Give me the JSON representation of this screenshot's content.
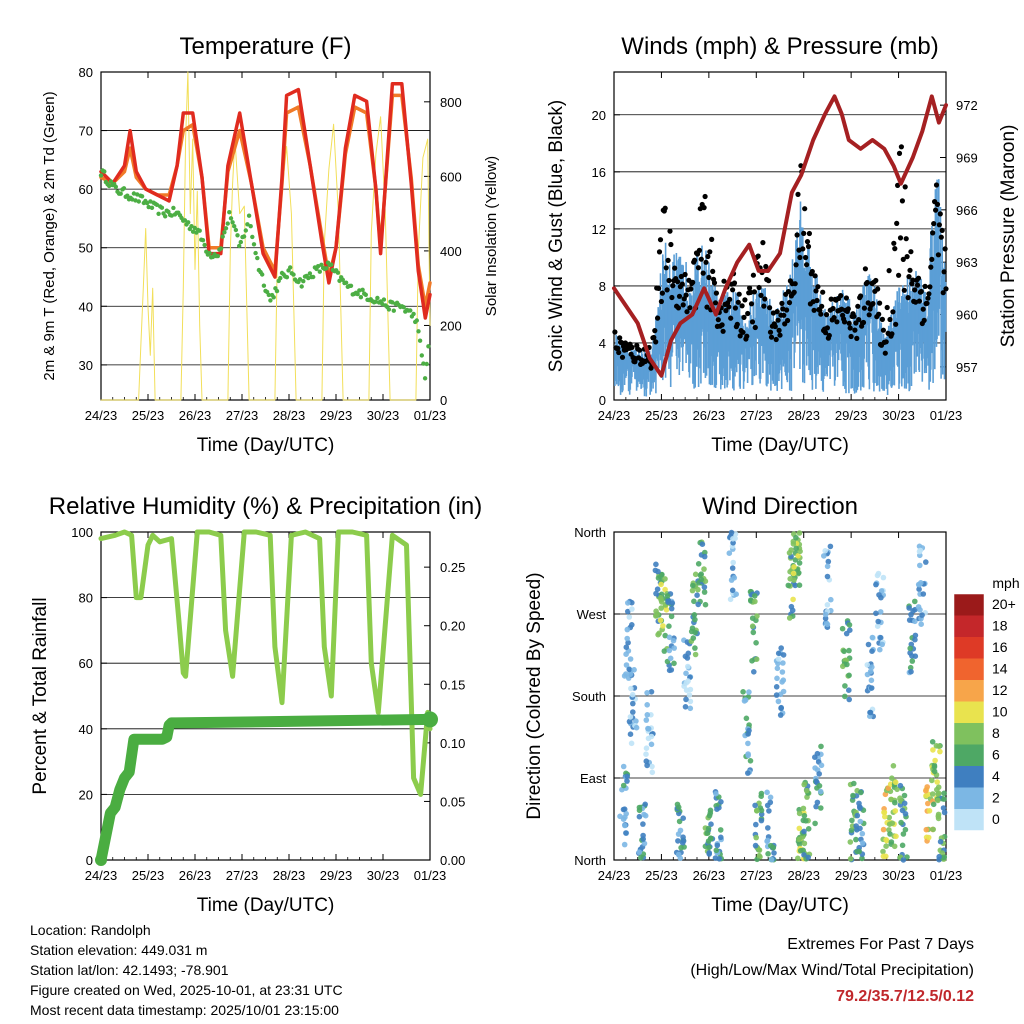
{
  "colors": {
    "temp_2m": "#e02b1f",
    "temp_9m": "#f07a28",
    "dewpoint": "#4cae44",
    "solar": "#f2df5a",
    "wind": "#5b9ed6",
    "gust": "#000000",
    "pressure": "#a52022",
    "humidity": "#8ccc4c",
    "rain": "#4aad41",
    "accent_red": "#c0282c"
  },
  "time_ticks": [
    "24/23",
    "25/23",
    "26/23",
    "27/23",
    "28/23",
    "29/23",
    "30/23",
    "01/23"
  ],
  "chart_data": [
    {
      "id": "temperature",
      "type": "line",
      "title": "Temperature (F)",
      "xlabel": "Time (Day/UTC)",
      "ylabel": "2m & 9m T (Red, Orange) & 2m Td (Green)",
      "y2label": "Solar Insolation (Yellow)",
      "xlim": [
        0,
        7
      ],
      "ylim": [
        24,
        80
      ],
      "yticks": [
        30,
        40,
        50,
        60,
        70,
        80
      ],
      "y2lim": [
        0,
        880
      ],
      "y2ticks": [
        0,
        200,
        400,
        600,
        800
      ],
      "series": [
        {
          "name": "2m Temperature",
          "color": "#e02b1f",
          "x": [
            0,
            0.25,
            0.5,
            0.62,
            0.75,
            0.95,
            1.2,
            1.45,
            1.62,
            1.75,
            1.95,
            2.15,
            2.3,
            2.55,
            2.7,
            2.95,
            3.2,
            3.45,
            3.7,
            3.85,
            3.95,
            4.2,
            4.45,
            4.7,
            4.85,
            5.0,
            5.2,
            5.4,
            5.65,
            5.85,
            5.95,
            6.2,
            6.4,
            6.6,
            6.75,
            6.9,
            7.0
          ],
          "y": [
            63,
            61,
            64,
            70,
            63,
            60,
            59,
            58,
            64,
            73,
            73,
            62,
            49,
            49,
            64,
            73,
            61,
            49,
            45,
            62,
            76,
            77,
            64,
            51,
            44,
            50,
            67,
            76,
            75,
            60,
            49,
            78,
            78,
            61,
            46,
            38,
            42
          ]
        },
        {
          "name": "9m Temperature",
          "color": "#f07a28",
          "x": [
            0,
            0.25,
            0.5,
            0.62,
            0.75,
            0.95,
            1.2,
            1.45,
            1.62,
            1.75,
            1.95,
            2.15,
            2.3,
            2.55,
            2.7,
            2.95,
            3.2,
            3.45,
            3.7,
            3.85,
            3.95,
            4.2,
            4.45,
            4.7,
            4.85,
            5.0,
            5.2,
            5.4,
            5.65,
            5.85,
            5.95,
            6.2,
            6.4,
            6.6,
            6.75,
            6.9,
            7.0
          ],
          "y": [
            62,
            61,
            63,
            67,
            62,
            60,
            59,
            59,
            64,
            70,
            71,
            62,
            50,
            50,
            63,
            70,
            61,
            50,
            46,
            61,
            73,
            74,
            64,
            52,
            45,
            50,
            66,
            74,
            73,
            60,
            50,
            76,
            76,
            62,
            47,
            40,
            44
          ]
        },
        {
          "name": "2m Dewpoint",
          "color": "#4cae44",
          "x": [
            0,
            0.3,
            0.6,
            0.9,
            1.1,
            1.35,
            1.6,
            1.85,
            2.05,
            2.3,
            2.5,
            2.75,
            2.95,
            3.15,
            3.35,
            3.6,
            3.85,
            4.05,
            4.25,
            4.55,
            4.85,
            5.05,
            5.3,
            5.6,
            5.9,
            6.15,
            6.4,
            6.7,
            6.9,
            7.0
          ],
          "y": [
            63,
            60,
            59,
            58,
            57,
            56,
            56,
            54,
            53,
            49,
            49,
            56,
            50,
            55,
            47,
            41,
            45,
            46,
            44,
            46,
            47,
            45,
            43,
            42,
            41,
            40,
            40,
            38,
            28,
            35
          ]
        },
        {
          "name": "Solar Insolation",
          "color": "#f2df5a",
          "axis": "y2",
          "x": [
            0,
            0.8,
            0.85,
            0.9,
            0.95,
            1.0,
            1.05,
            1.1,
            1.15,
            1.7,
            1.75,
            1.8,
            1.85,
            1.9,
            1.95,
            2.0,
            2.05,
            2.1,
            2.15,
            2.7,
            2.75,
            2.8,
            2.85,
            2.95,
            3.05,
            3.15,
            3.7,
            3.75,
            3.85,
            3.95,
            4.05,
            4.15,
            4.7,
            4.75,
            4.85,
            4.95,
            5.05,
            5.15,
            5.7,
            5.75,
            5.85,
            5.95,
            6.05,
            6.15,
            6.7,
            6.75,
            6.85,
            6.95,
            7.0
          ],
          "y": [
            0,
            0,
            150,
            300,
            460,
            250,
            120,
            300,
            0,
            0,
            300,
            700,
            880,
            500,
            700,
            350,
            560,
            200,
            0,
            0,
            400,
            580,
            700,
            500,
            520,
            0,
            0,
            380,
            560,
            680,
            500,
            0,
            0,
            420,
            620,
            740,
            500,
            0,
            0,
            450,
            660,
            760,
            500,
            0,
            0,
            400,
            650,
            700,
            200
          ]
        }
      ]
    },
    {
      "id": "winds",
      "type": "line",
      "title": "Winds (mph) & Pressure (mb)",
      "xlabel": "Time (Day/UTC)",
      "ylabel": "Sonic Wind & Gust (Blue, Black)",
      "y2label": "Station Pressure (Maroon)",
      "xlim": [
        0,
        7
      ],
      "ylim": [
        0,
        23
      ],
      "yticks": [
        0,
        4,
        8,
        12,
        16,
        20
      ],
      "y2lim": [
        955.1,
        973.9
      ],
      "y2ticks": [
        957,
        960,
        963,
        966,
        969,
        972
      ],
      "series": [
        {
          "name": "Sonic Wind",
          "color": "#5b9ed6",
          "x": [
            0,
            0.4,
            0.8,
            1.05,
            1.3,
            1.6,
            1.9,
            2.2,
            2.5,
            2.8,
            3.1,
            3.4,
            3.7,
            3.95,
            4.2,
            4.5,
            4.8,
            5.1,
            5.4,
            5.7,
            6.0,
            6.3,
            6.6,
            6.8,
            7.0
          ],
          "y": [
            3,
            2.5,
            2.2,
            7,
            6.5,
            6,
            7,
            4.5,
            5,
            4,
            5.5,
            4,
            5.5,
            9,
            6,
            4,
            5,
            4,
            6,
            3,
            5,
            6,
            5,
            11,
            6
          ]
        },
        {
          "name": "Wind Gust",
          "color": "#000000",
          "x": [
            0,
            0.4,
            0.8,
            1.05,
            1.3,
            1.6,
            1.9,
            2.2,
            2.5,
            2.8,
            3.1,
            3.4,
            3.7,
            3.95,
            4.2,
            4.5,
            4.8,
            5.1,
            5.4,
            5.7,
            6.0,
            6.3,
            6.6,
            6.8,
            7.0
          ],
          "y": [
            5,
            4,
            4,
            14.3,
            10,
            8.5,
            15.2,
            8,
            9,
            7,
            12.3,
            6,
            8,
            17.2,
            10,
            7,
            8,
            6,
            11,
            5,
            20.4,
            11,
            8,
            16.8,
            10
          ]
        },
        {
          "name": "Station Pressure",
          "color": "#a52022",
          "axis": "y2",
          "x": [
            0,
            0.25,
            0.5,
            0.75,
            1.0,
            1.2,
            1.4,
            1.65,
            1.9,
            2.15,
            2.35,
            2.6,
            2.85,
            3.05,
            3.25,
            3.5,
            3.75,
            3.95,
            4.2,
            4.45,
            4.65,
            4.8,
            4.95,
            5.2,
            5.45,
            5.7,
            5.9,
            6.05,
            6.3,
            6.5,
            6.7,
            6.85,
            7.0
          ],
          "y": [
            961.5,
            960.5,
            959.5,
            957.5,
            956.5,
            958.5,
            959.5,
            960,
            961.5,
            960,
            961.5,
            963,
            964,
            962.5,
            962.5,
            963.5,
            967,
            968,
            970,
            971.5,
            972.5,
            971.5,
            970,
            969.5,
            970,
            969.5,
            968.5,
            967.5,
            969,
            970.5,
            972.5,
            971,
            972
          ]
        }
      ]
    },
    {
      "id": "humidity",
      "type": "line",
      "title": "Relative Humidity (%) & Precipitation (in)",
      "xlabel": "Time (Day/UTC)",
      "ylabel": "Percent & Total Rainfall",
      "xlim": [
        0,
        7
      ],
      "ylim": [
        0,
        100
      ],
      "yticks": [
        0,
        20,
        40,
        60,
        80,
        100
      ],
      "y2lim": [
        0,
        0.28
      ],
      "y2ticks": [
        0.0,
        0.05,
        0.1,
        0.15,
        0.2,
        0.25
      ],
      "y2ticklabels": [
        "0.00",
        "0.05",
        "0.10",
        "0.15",
        "0.20",
        "0.25"
      ],
      "series": [
        {
          "name": "Relative Humidity",
          "color": "#8ccc4c",
          "x": [
            0,
            0.3,
            0.5,
            0.65,
            0.75,
            0.85,
            1.0,
            1.1,
            1.25,
            1.5,
            1.65,
            1.75,
            1.8,
            2.05,
            2.3,
            2.55,
            2.65,
            2.8,
            3.05,
            3.3,
            3.6,
            3.7,
            3.85,
            4.05,
            4.35,
            4.65,
            4.75,
            4.9,
            5.05,
            5.35,
            5.65,
            5.75,
            5.9,
            6.2,
            6.5,
            6.65,
            6.8,
            6.95,
            7.0
          ],
          "y": [
            98,
            99,
            100,
            99,
            80,
            80,
            96,
            99,
            97,
            98,
            74,
            57,
            56,
            100,
            100,
            99,
            70,
            56,
            100,
            100,
            99,
            65,
            48,
            99,
            100,
            98,
            65,
            50,
            100,
            100,
            99,
            60,
            45,
            99,
            96,
            25,
            20,
            45,
            40
          ]
        },
        {
          "name": "Total Precipitation",
          "color": "#4aad41",
          "axis": "y2",
          "x": [
            0,
            0.1,
            0.2,
            0.3,
            0.4,
            0.5,
            0.6,
            0.7,
            1.05,
            1.3,
            1.4,
            1.45,
            1.5,
            1.6,
            7.0
          ],
          "y": [
            0,
            0.02,
            0.04,
            0.045,
            0.06,
            0.07,
            0.075,
            0.103,
            0.103,
            0.103,
            0.105,
            0.115,
            0.117,
            0.117,
            0.12
          ]
        }
      ]
    },
    {
      "id": "direction",
      "type": "scatter",
      "title": "Wind Direction",
      "xlabel": "Time (Day/UTC)",
      "ylabel": "Direction (Colored By Speed)",
      "xlim": [
        0,
        7
      ],
      "ylim": [
        0,
        360
      ],
      "yticks": [
        0,
        90,
        180,
        270,
        360
      ],
      "yticklabels": [
        "North",
        "East",
        "South",
        "West",
        "North"
      ],
      "colorbar": {
        "title": "mph",
        "labels": [
          "20+",
          "18",
          "16",
          "14",
          "12",
          "10",
          "8",
          "6",
          "4",
          "2",
          "0"
        ],
        "colors": [
          "#9b1a1a",
          "#c4272a",
          "#de3a26",
          "#f0642e",
          "#f7a54a",
          "#e9e34e",
          "#7fc15e",
          "#4ea865",
          "#3f7fc0",
          "#7cb7e4",
          "#bfe3f7"
        ]
      },
      "clusters": [
        {
          "x": 0.2,
          "y": 60,
          "speed": 4
        },
        {
          "x": 0.3,
          "y": 240,
          "speed": 2
        },
        {
          "x": 0.4,
          "y": 170,
          "speed": 2
        },
        {
          "x": 0.6,
          "y": 30,
          "speed": 4
        },
        {
          "x": 0.75,
          "y": 140,
          "speed": 2
        },
        {
          "x": 0.95,
          "y": 280,
          "speed": 6
        },
        {
          "x": 1.05,
          "y": 270,
          "speed": 8
        },
        {
          "x": 1.2,
          "y": 250,
          "speed": 4
        },
        {
          "x": 1.4,
          "y": 30,
          "speed": 4
        },
        {
          "x": 1.55,
          "y": 200,
          "speed": 2
        },
        {
          "x": 1.7,
          "y": 270,
          "speed": 6
        },
        {
          "x": 1.85,
          "y": 320,
          "speed": 6
        },
        {
          "x": 2.0,
          "y": 15,
          "speed": 6
        },
        {
          "x": 2.2,
          "y": 30,
          "speed": 4
        },
        {
          "x": 2.5,
          "y": 330,
          "speed": 2
        },
        {
          "x": 2.8,
          "y": 140,
          "speed": 4
        },
        {
          "x": 2.95,
          "y": 250,
          "speed": 6
        },
        {
          "x": 3.05,
          "y": 30,
          "speed": 6
        },
        {
          "x": 3.3,
          "y": 30,
          "speed": 4
        },
        {
          "x": 3.5,
          "y": 200,
          "speed": 2
        },
        {
          "x": 3.75,
          "y": 300,
          "speed": 6
        },
        {
          "x": 3.85,
          "y": 330,
          "speed": 8
        },
        {
          "x": 3.95,
          "y": 15,
          "speed": 8
        },
        {
          "x": 4.05,
          "y": 40,
          "speed": 6
        },
        {
          "x": 4.3,
          "y": 80,
          "speed": 4
        },
        {
          "x": 4.5,
          "y": 300,
          "speed": 2
        },
        {
          "x": 4.9,
          "y": 220,
          "speed": 6
        },
        {
          "x": 5.05,
          "y": 40,
          "speed": 6
        },
        {
          "x": 5.2,
          "y": 30,
          "speed": 4
        },
        {
          "x": 5.4,
          "y": 200,
          "speed": 2
        },
        {
          "x": 5.6,
          "y": 270,
          "speed": 2
        },
        {
          "x": 5.75,
          "y": 40,
          "speed": 10
        },
        {
          "x": 5.9,
          "y": 60,
          "speed": 8
        },
        {
          "x": 6.1,
          "y": 40,
          "speed": 6
        },
        {
          "x": 6.3,
          "y": 240,
          "speed": 4
        },
        {
          "x": 6.5,
          "y": 300,
          "speed": 2
        },
        {
          "x": 6.65,
          "y": 60,
          "speed": 10
        },
        {
          "x": 6.8,
          "y": 90,
          "speed": 8
        },
        {
          "x": 6.9,
          "y": 30,
          "speed": 6
        }
      ]
    }
  ],
  "info": {
    "location": "Location: Randolph",
    "elevation": "Station elevation: 449.031 m",
    "latlon": "Station lat/lon: 42.1493; -78.901",
    "created": "Figure created on Wed, 2025-10-01, at 23:31 UTC",
    "timestamp": "Most recent data timestamp: 2025/10/01 23:15:00"
  },
  "extremes": {
    "line1": "Extremes For Past 7 Days",
    "line2": "(High/Low/Max Wind/Total Precipitation)",
    "values": "79.2/35.7/12.5/0.12"
  }
}
